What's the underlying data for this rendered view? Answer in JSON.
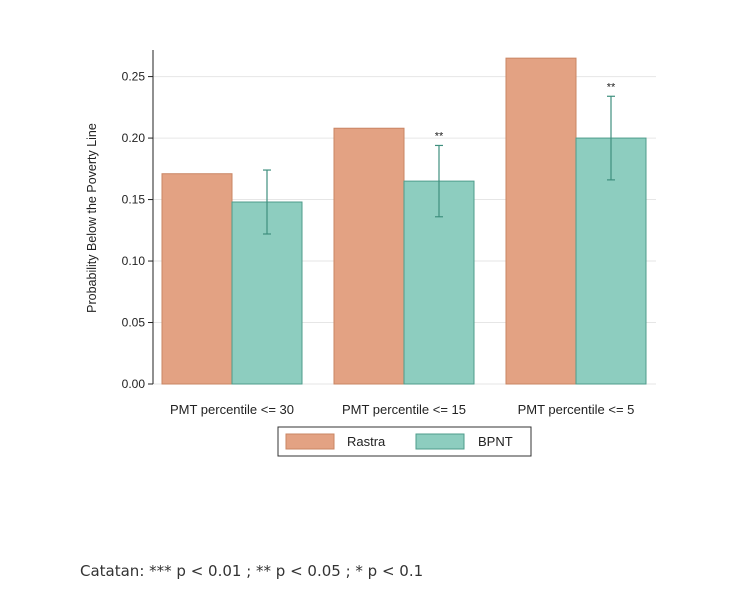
{
  "chart_data": {
    "type": "bar",
    "categories": [
      "PMT percentile <= 30",
      "PMT percentile <= 15",
      "PMT percentile <= 5"
    ],
    "series": [
      {
        "name": "Rastra",
        "values": [
          0.171,
          0.208,
          0.265
        ],
        "color": "#E3A283"
      },
      {
        "name": "BPNT",
        "values": [
          0.148,
          0.165,
          0.2
        ],
        "color": "#8DCDBF",
        "ci_low": [
          0.122,
          0.136,
          0.166
        ],
        "ci_high": [
          0.174,
          0.194,
          0.234
        ],
        "significance": [
          "",
          "**",
          "**"
        ]
      }
    ],
    "ylabel": "Probability Below the Poverty Line",
    "ylim": [
      0,
      0.27
    ],
    "yticks": [
      "0.00",
      "0.05",
      "0.10",
      "0.15",
      "0.20",
      "0.25"
    ],
    "grid": true,
    "legend_position": "bottom",
    "error_bar_color": "#3F8F7E",
    "bar_edge_colors": {
      "Rastra": "#C98563",
      "BPNT": "#4E9C8B"
    }
  },
  "footnote": "Catatan: *** p < 0.01 ; ** p < 0.05 ; * p < 0.1"
}
